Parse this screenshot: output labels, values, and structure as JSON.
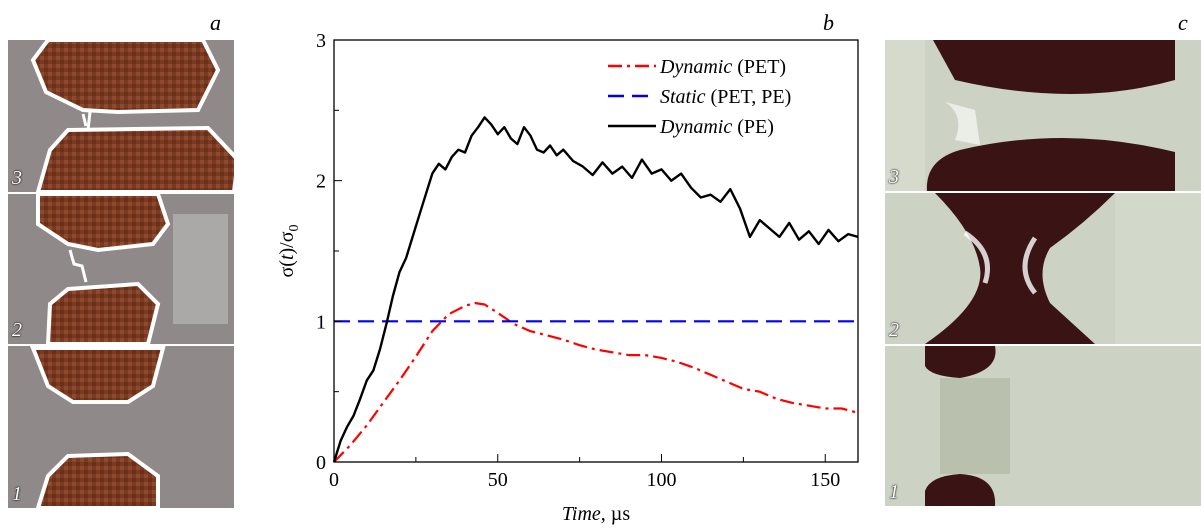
{
  "panels": {
    "a": {
      "letter": "a",
      "frames": [
        "3",
        "2",
        "1"
      ]
    },
    "b": {
      "letter": "b"
    },
    "c": {
      "letter": "c",
      "frames": [
        "3",
        "2",
        "1"
      ]
    }
  },
  "colors": {
    "dynamic_pet": "#ff0000",
    "static": "#0000ee",
    "dynamic_pe": "#000000",
    "fabric": "#7a3a22",
    "fabric_bg": "#8f8a89",
    "film_bg": "#cdd3c4",
    "hole": "#3a1414"
  },
  "chart_data": {
    "type": "line",
    "xlabel_italic": "Time",
    "xlabel_unit": ", µs",
    "ylabel_parts": [
      "σ(",
      "t",
      ")/σ",
      "0"
    ],
    "xlim": [
      0,
      160
    ],
    "ylim": [
      0,
      3
    ],
    "xticks": [
      0,
      50,
      100,
      150
    ],
    "yticks": [
      0,
      1,
      2,
      3
    ],
    "grid": false,
    "legend_position": "top-right",
    "series": [
      {
        "name_italic": "Dynamic",
        "name_rest": " (PET)",
        "style": "dash-dot",
        "color": "#ff0000",
        "x": [
          0,
          5,
          10,
          15,
          20,
          25,
          30,
          35,
          40,
          43,
          46,
          50,
          55,
          60,
          65,
          70,
          75,
          80,
          85,
          90,
          95,
          100,
          105,
          110,
          115,
          120,
          125,
          130,
          135,
          140,
          145,
          150,
          155,
          160
        ],
        "y": [
          0,
          0.12,
          0.26,
          0.42,
          0.58,
          0.75,
          0.93,
          1.05,
          1.11,
          1.13,
          1.12,
          1.06,
          0.98,
          0.93,
          0.9,
          0.87,
          0.83,
          0.8,
          0.78,
          0.76,
          0.76,
          0.74,
          0.71,
          0.67,
          0.62,
          0.57,
          0.52,
          0.5,
          0.45,
          0.42,
          0.4,
          0.38,
          0.38,
          0.35
        ]
      },
      {
        "name_italic": "Static",
        "name_rest": " (PET, PE)",
        "style": "dashed",
        "color": "#0000ee",
        "x": [
          0,
          160
        ],
        "y": [
          1,
          1
        ]
      },
      {
        "name_italic": "Dynamic",
        "name_rest": " (PE)",
        "style": "solid",
        "color": "#000000",
        "x": [
          0,
          2,
          4,
          6,
          8,
          10,
          12,
          14,
          16,
          18,
          20,
          22,
          24,
          26,
          28,
          30,
          32,
          34,
          36,
          38,
          40,
          42,
          44,
          46,
          48,
          50,
          52,
          54,
          56,
          58,
          60,
          62,
          64,
          66,
          68,
          70,
          73,
          76,
          79,
          82,
          85,
          88,
          91,
          94,
          97,
          100,
          103,
          106,
          109,
          112,
          115,
          118,
          121,
          124,
          127,
          130,
          133,
          136,
          139,
          142,
          145,
          148,
          151,
          154,
          157,
          160
        ],
        "y": [
          0,
          0.15,
          0.25,
          0.33,
          0.45,
          0.58,
          0.65,
          0.8,
          0.98,
          1.18,
          1.35,
          1.45,
          1.6,
          1.75,
          1.9,
          2.05,
          2.12,
          2.08,
          2.17,
          2.22,
          2.2,
          2.32,
          2.38,
          2.45,
          2.4,
          2.33,
          2.38,
          2.3,
          2.26,
          2.38,
          2.32,
          2.22,
          2.2,
          2.25,
          2.18,
          2.22,
          2.14,
          2.1,
          2.04,
          2.13,
          2.05,
          2.1,
          2.02,
          2.15,
          2.05,
          2.08,
          2.0,
          2.05,
          1.95,
          1.88,
          1.9,
          1.85,
          1.94,
          1.8,
          1.6,
          1.72,
          1.66,
          1.6,
          1.7,
          1.58,
          1.64,
          1.55,
          1.65,
          1.57,
          1.62,
          1.6
        ]
      }
    ]
  }
}
